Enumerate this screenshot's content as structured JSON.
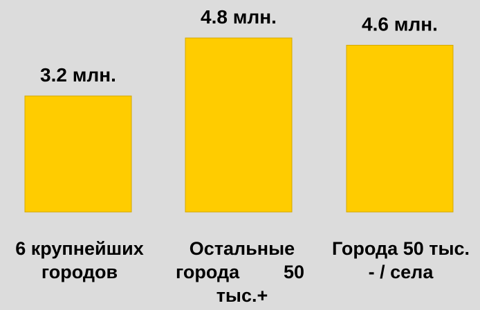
{
  "chart_data": {
    "type": "bar",
    "categories": [
      "6 крупнейших городов",
      "Остальные города 50 тыс.+",
      "Города 50 тыс. - / села"
    ],
    "values": [
      3.2,
      4.8,
      4.6
    ],
    "data_labels": [
      "3.2 млн.",
      "4.8 млн.",
      "4.6 млн."
    ],
    "unit": "млн.",
    "bar_color": "#ffcc00",
    "bar_edge_color": "#d4a800",
    "background": "#dcdcdc",
    "grid": false,
    "legend": "none",
    "axes_visible": false
  },
  "labels": {
    "cat0": {
      "line1": "6 крупнейших",
      "line2": "городов"
    },
    "cat1": {
      "line1": "Остальные",
      "line2a": "города",
      "line2b": "50",
      "line3": "тыс.+"
    },
    "cat2": {
      "line1": "Города 50 тыс.",
      "line2": "- / села"
    }
  }
}
